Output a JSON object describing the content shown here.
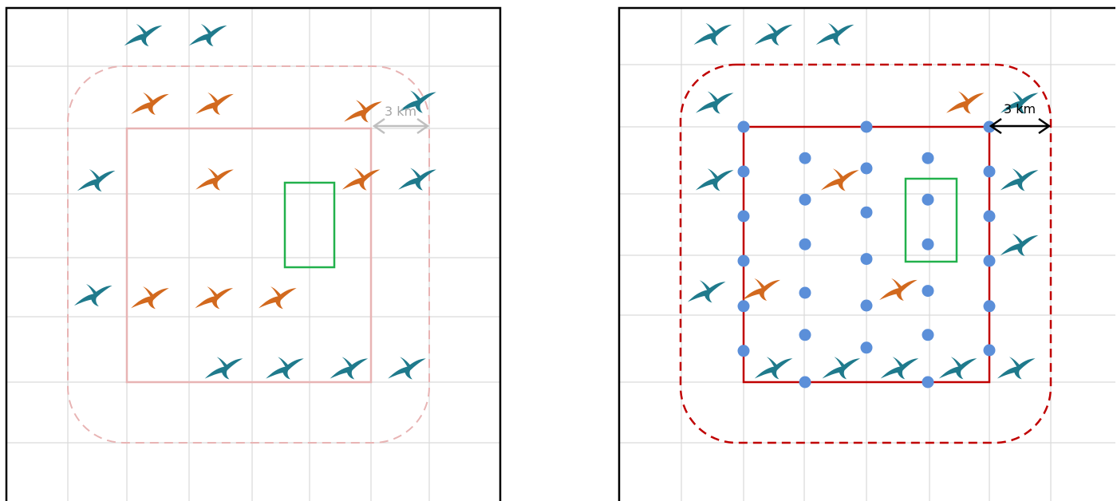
{
  "panels": [
    {
      "id": "left",
      "scale_label": "3 km",
      "colors": {
        "grid": "#d9d9d9",
        "frame": "#000000",
        "survey_square": "#e8b4b4",
        "buffer": "#e8b4b4",
        "detail_box": "#22b14c",
        "scale_arrow": "#bfbfbf",
        "scale_text": "#a6a6a6",
        "bird_inside": "#d2691e",
        "bird_outside": "#1f7a8c"
      },
      "birds": {
        "inside": [
          [
            0.36,
            -0.39
          ],
          [
            1.42,
            -0.39
          ],
          [
            3.85,
            -0.27
          ],
          [
            1.42,
            0.8
          ],
          [
            3.82,
            0.8
          ],
          [
            0.36,
            2.67
          ],
          [
            1.41,
            2.67
          ],
          [
            2.45,
            2.67
          ]
        ],
        "outside": [
          [
            0.25,
            -1.47
          ],
          [
            1.31,
            -1.47
          ],
          [
            4.74,
            -0.42
          ],
          [
            -0.52,
            0.82
          ],
          [
            4.74,
            0.8
          ],
          [
            -0.57,
            2.63
          ],
          [
            1.57,
            3.78
          ],
          [
            2.57,
            3.78
          ],
          [
            3.62,
            3.78
          ],
          [
            4.57,
            3.78
          ]
        ]
      }
    },
    {
      "id": "right",
      "scale_label": "3 km",
      "colors": {
        "grid": "#d9d9d9",
        "frame": "#000000",
        "survey_square": "#c00000",
        "buffer": "#c00000",
        "detail_box": "#22b14c",
        "scale_arrow": "#000000",
        "scale_text": "#000000",
        "point": "#5b8fd9",
        "bird_inside": "#d2691e",
        "bird_outside": "#1f7a8c"
      },
      "birds": {
        "inside": [
          [
            3.59,
            -0.38
          ],
          [
            1.55,
            0.83
          ],
          [
            0.27,
            2.55
          ],
          [
            2.5,
            2.55
          ]
        ],
        "outside": [
          [
            -0.52,
            -1.45
          ],
          [
            0.47,
            -1.45
          ],
          [
            1.47,
            -1.45
          ],
          [
            -0.49,
            -0.38
          ],
          [
            4.47,
            -0.38
          ],
          [
            -0.49,
            0.83
          ],
          [
            4.47,
            0.83
          ],
          [
            4.47,
            1.85
          ],
          [
            -0.62,
            2.58
          ],
          [
            0.47,
            3.78
          ],
          [
            1.57,
            3.78
          ],
          [
            2.52,
            3.78
          ],
          [
            3.47,
            3.78
          ],
          [
            4.42,
            3.78
          ]
        ]
      },
      "points": [
        [
          0,
          0
        ],
        [
          2,
          0
        ],
        [
          4,
          0
        ],
        [
          0,
          0.7
        ],
        [
          1,
          0.49
        ],
        [
          2,
          0.65
        ],
        [
          3,
          0.49
        ],
        [
          4,
          0.7
        ],
        [
          0,
          1.4
        ],
        [
          1,
          1.14
        ],
        [
          2,
          1.34
        ],
        [
          3,
          1.14
        ],
        [
          4,
          1.4
        ],
        [
          1,
          1.84
        ],
        [
          3,
          1.84
        ],
        [
          0,
          2.1
        ],
        [
          2,
          2.07
        ],
        [
          4,
          2.1
        ],
        [
          0,
          2.81
        ],
        [
          1,
          2.6
        ],
        [
          2,
          2.8
        ],
        [
          3,
          2.57
        ],
        [
          4,
          2.81
        ],
        [
          0,
          3.51
        ],
        [
          1,
          3.26
        ],
        [
          3,
          3.26
        ],
        [
          2,
          3.46
        ],
        [
          4,
          3.5
        ],
        [
          1,
          4.0
        ],
        [
          3,
          4.0
        ]
      ]
    }
  ]
}
